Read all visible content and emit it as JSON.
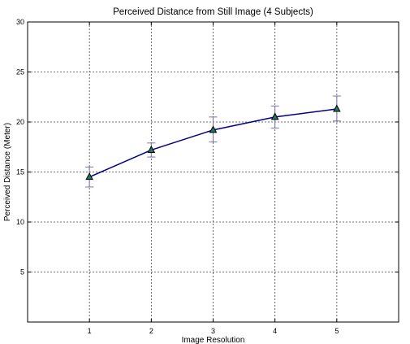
{
  "chart_data": {
    "type": "line",
    "title": "Perceived Distance from Still Image (4 Subjects)",
    "xlabel": "Image Resolution",
    "ylabel": "Perceived Distance (Meter)",
    "xlim": [
      0,
      6
    ],
    "ylim": [
      0,
      30
    ],
    "xticks": [
      1,
      2,
      3,
      4,
      5
    ],
    "yticks": [
      5,
      10,
      15,
      20,
      25,
      30
    ],
    "grid": true,
    "series": [
      {
        "x": [
          1,
          2,
          3,
          4,
          5
        ],
        "y": [
          14.5,
          17.2,
          19.2,
          20.5,
          21.3
        ],
        "error_low": [
          1.0,
          0.7,
          1.2,
          1.1,
          1.2
        ],
        "error_high": [
          1.0,
          0.7,
          1.3,
          1.1,
          1.3
        ],
        "color": "#00008b",
        "marker": "triangle",
        "marker_fill": "#1f7a5a",
        "errorbar_color": "#7b6fb0"
      }
    ]
  }
}
